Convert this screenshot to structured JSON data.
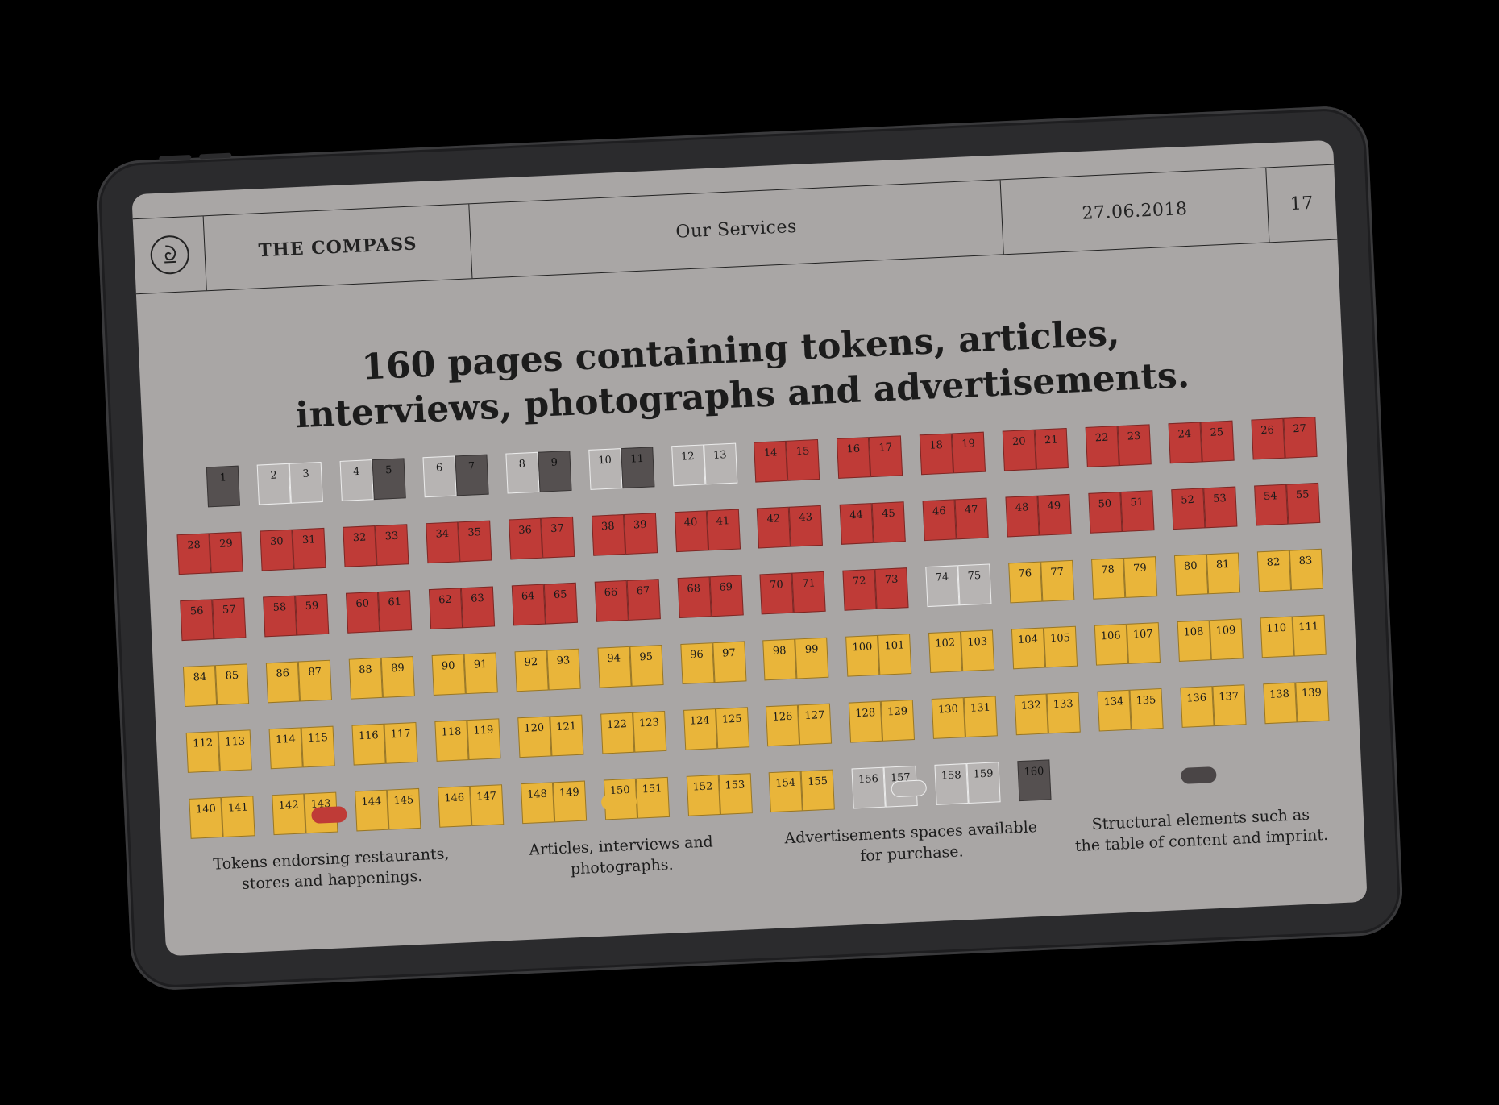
{
  "header": {
    "brand": "THE COMPASS",
    "section": "Our Services",
    "date": "27.06.2018",
    "page_number": "17"
  },
  "headline": {
    "line1": "160 pages containing tokens, articles,",
    "line2": "interviews, photographs and advertisements."
  },
  "colors": {
    "red": "#bf3b37",
    "yellow": "#e9b53a",
    "white": "#b7b4b3",
    "dark": "#555050"
  },
  "spreads": [
    [
      null,
      {
        "n": "1",
        "c": "dark"
      }
    ],
    [
      {
        "n": "2",
        "c": "white"
      },
      {
        "n": "3",
        "c": "white"
      }
    ],
    [
      {
        "n": "4",
        "c": "white"
      },
      {
        "n": "5",
        "c": "dark"
      }
    ],
    [
      {
        "n": "6",
        "c": "white"
      },
      {
        "n": "7",
        "c": "dark"
      }
    ],
    [
      {
        "n": "8",
        "c": "white"
      },
      {
        "n": "9",
        "c": "dark"
      }
    ],
    [
      {
        "n": "10",
        "c": "white"
      },
      {
        "n": "11",
        "c": "dark"
      }
    ],
    [
      {
        "n": "12",
        "c": "white"
      },
      {
        "n": "13",
        "c": "white"
      }
    ],
    [
      {
        "n": "14",
        "c": "red"
      },
      {
        "n": "15",
        "c": "red"
      }
    ],
    [
      {
        "n": "16",
        "c": "red"
      },
      {
        "n": "17",
        "c": "red"
      }
    ],
    [
      {
        "n": "18",
        "c": "red"
      },
      {
        "n": "19",
        "c": "red"
      }
    ],
    [
      {
        "n": "20",
        "c": "red"
      },
      {
        "n": "21",
        "c": "red"
      }
    ],
    [
      {
        "n": "22",
        "c": "red"
      },
      {
        "n": "23",
        "c": "red"
      }
    ],
    [
      {
        "n": "24",
        "c": "red"
      },
      {
        "n": "25",
        "c": "red"
      }
    ],
    [
      {
        "n": "26",
        "c": "red"
      },
      {
        "n": "27",
        "c": "red"
      }
    ],
    [
      {
        "n": "28",
        "c": "red"
      },
      {
        "n": "29",
        "c": "red"
      }
    ],
    [
      {
        "n": "30",
        "c": "red"
      },
      {
        "n": "31",
        "c": "red"
      }
    ],
    [
      {
        "n": "32",
        "c": "red"
      },
      {
        "n": "33",
        "c": "red"
      }
    ],
    [
      {
        "n": "34",
        "c": "red"
      },
      {
        "n": "35",
        "c": "red"
      }
    ],
    [
      {
        "n": "36",
        "c": "red"
      },
      {
        "n": "37",
        "c": "red"
      }
    ],
    [
      {
        "n": "38",
        "c": "red"
      },
      {
        "n": "39",
        "c": "red"
      }
    ],
    [
      {
        "n": "40",
        "c": "red"
      },
      {
        "n": "41",
        "c": "red"
      }
    ],
    [
      {
        "n": "42",
        "c": "red"
      },
      {
        "n": "43",
        "c": "red"
      }
    ],
    [
      {
        "n": "44",
        "c": "red"
      },
      {
        "n": "45",
        "c": "red"
      }
    ],
    [
      {
        "n": "46",
        "c": "red"
      },
      {
        "n": "47",
        "c": "red"
      }
    ],
    [
      {
        "n": "48",
        "c": "red"
      },
      {
        "n": "49",
        "c": "red"
      }
    ],
    [
      {
        "n": "50",
        "c": "red"
      },
      {
        "n": "51",
        "c": "red"
      }
    ],
    [
      {
        "n": "52",
        "c": "red"
      },
      {
        "n": "53",
        "c": "red"
      }
    ],
    [
      {
        "n": "54",
        "c": "red"
      },
      {
        "n": "55",
        "c": "red"
      }
    ],
    [
      {
        "n": "56",
        "c": "red"
      },
      {
        "n": "57",
        "c": "red"
      }
    ],
    [
      {
        "n": "58",
        "c": "red"
      },
      {
        "n": "59",
        "c": "red"
      }
    ],
    [
      {
        "n": "60",
        "c": "red"
      },
      {
        "n": "61",
        "c": "red"
      }
    ],
    [
      {
        "n": "62",
        "c": "red"
      },
      {
        "n": "63",
        "c": "red"
      }
    ],
    [
      {
        "n": "64",
        "c": "red"
      },
      {
        "n": "65",
        "c": "red"
      }
    ],
    [
      {
        "n": "66",
        "c": "red"
      },
      {
        "n": "67",
        "c": "red"
      }
    ],
    [
      {
        "n": "68",
        "c": "red"
      },
      {
        "n": "69",
        "c": "red"
      }
    ],
    [
      {
        "n": "70",
        "c": "red"
      },
      {
        "n": "71",
        "c": "red"
      }
    ],
    [
      {
        "n": "72",
        "c": "red"
      },
      {
        "n": "73",
        "c": "red"
      }
    ],
    [
      {
        "n": "74",
        "c": "white"
      },
      {
        "n": "75",
        "c": "white"
      }
    ],
    [
      {
        "n": "76",
        "c": "yellow"
      },
      {
        "n": "77",
        "c": "yellow"
      }
    ],
    [
      {
        "n": "78",
        "c": "yellow"
      },
      {
        "n": "79",
        "c": "yellow"
      }
    ],
    [
      {
        "n": "80",
        "c": "yellow"
      },
      {
        "n": "81",
        "c": "yellow"
      }
    ],
    [
      {
        "n": "82",
        "c": "yellow"
      },
      {
        "n": "83",
        "c": "yellow"
      }
    ],
    [
      {
        "n": "84",
        "c": "yellow"
      },
      {
        "n": "85",
        "c": "yellow"
      }
    ],
    [
      {
        "n": "86",
        "c": "yellow"
      },
      {
        "n": "87",
        "c": "yellow"
      }
    ],
    [
      {
        "n": "88",
        "c": "yellow"
      },
      {
        "n": "89",
        "c": "yellow"
      }
    ],
    [
      {
        "n": "90",
        "c": "yellow"
      },
      {
        "n": "91",
        "c": "yellow"
      }
    ],
    [
      {
        "n": "92",
        "c": "yellow"
      },
      {
        "n": "93",
        "c": "yellow"
      }
    ],
    [
      {
        "n": "94",
        "c": "yellow"
      },
      {
        "n": "95",
        "c": "yellow"
      }
    ],
    [
      {
        "n": "96",
        "c": "yellow"
      },
      {
        "n": "97",
        "c": "yellow"
      }
    ],
    [
      {
        "n": "98",
        "c": "yellow"
      },
      {
        "n": "99",
        "c": "yellow"
      }
    ],
    [
      {
        "n": "100",
        "c": "yellow"
      },
      {
        "n": "101",
        "c": "yellow"
      }
    ],
    [
      {
        "n": "102",
        "c": "yellow"
      },
      {
        "n": "103",
        "c": "yellow"
      }
    ],
    [
      {
        "n": "104",
        "c": "yellow"
      },
      {
        "n": "105",
        "c": "yellow"
      }
    ],
    [
      {
        "n": "106",
        "c": "yellow"
      },
      {
        "n": "107",
        "c": "yellow"
      }
    ],
    [
      {
        "n": "108",
        "c": "yellow"
      },
      {
        "n": "109",
        "c": "yellow"
      }
    ],
    [
      {
        "n": "110",
        "c": "yellow"
      },
      {
        "n": "111",
        "c": "yellow"
      }
    ],
    [
      {
        "n": "112",
        "c": "yellow"
      },
      {
        "n": "113",
        "c": "yellow"
      }
    ],
    [
      {
        "n": "114",
        "c": "yellow"
      },
      {
        "n": "115",
        "c": "yellow"
      }
    ],
    [
      {
        "n": "116",
        "c": "yellow"
      },
      {
        "n": "117",
        "c": "yellow"
      }
    ],
    [
      {
        "n": "118",
        "c": "yellow"
      },
      {
        "n": "119",
        "c": "yellow"
      }
    ],
    [
      {
        "n": "120",
        "c": "yellow"
      },
      {
        "n": "121",
        "c": "yellow"
      }
    ],
    [
      {
        "n": "122",
        "c": "yellow"
      },
      {
        "n": "123",
        "c": "yellow"
      }
    ],
    [
      {
        "n": "124",
        "c": "yellow"
      },
      {
        "n": "125",
        "c": "yellow"
      }
    ],
    [
      {
        "n": "126",
        "c": "yellow"
      },
      {
        "n": "127",
        "c": "yellow"
      }
    ],
    [
      {
        "n": "128",
        "c": "yellow"
      },
      {
        "n": "129",
        "c": "yellow"
      }
    ],
    [
      {
        "n": "130",
        "c": "yellow"
      },
      {
        "n": "131",
        "c": "yellow"
      }
    ],
    [
      {
        "n": "132",
        "c": "yellow"
      },
      {
        "n": "133",
        "c": "yellow"
      }
    ],
    [
      {
        "n": "134",
        "c": "yellow"
      },
      {
        "n": "135",
        "c": "yellow"
      }
    ],
    [
      {
        "n": "136",
        "c": "yellow"
      },
      {
        "n": "137",
        "c": "yellow"
      }
    ],
    [
      {
        "n": "138",
        "c": "yellow"
      },
      {
        "n": "139",
        "c": "yellow"
      }
    ],
    [
      {
        "n": "140",
        "c": "yellow"
      },
      {
        "n": "141",
        "c": "yellow"
      }
    ],
    [
      {
        "n": "142",
        "c": "yellow"
      },
      {
        "n": "143",
        "c": "yellow"
      }
    ],
    [
      {
        "n": "144",
        "c": "yellow"
      },
      {
        "n": "145",
        "c": "yellow"
      }
    ],
    [
      {
        "n": "146",
        "c": "yellow"
      },
      {
        "n": "147",
        "c": "yellow"
      }
    ],
    [
      {
        "n": "148",
        "c": "yellow"
      },
      {
        "n": "149",
        "c": "yellow"
      }
    ],
    [
      {
        "n": "150",
        "c": "yellow"
      },
      {
        "n": "151",
        "c": "yellow"
      }
    ],
    [
      {
        "n": "152",
        "c": "yellow"
      },
      {
        "n": "153",
        "c": "yellow"
      }
    ],
    [
      {
        "n": "154",
        "c": "yellow"
      },
      {
        "n": "155",
        "c": "yellow"
      }
    ],
    [
      {
        "n": "156",
        "c": "white"
      },
      {
        "n": "157",
        "c": "white"
      }
    ],
    [
      {
        "n": "158",
        "c": "white"
      },
      {
        "n": "159",
        "c": "white"
      }
    ],
    [
      {
        "n": "160",
        "c": "dark"
      },
      null
    ]
  ],
  "legend": [
    {
      "color": "red",
      "text_line1": "Tokens endorsing restaurants,",
      "text_line2": "stores and happenings."
    },
    {
      "color": "yellow",
      "text_line1": "Articles, interviews and",
      "text_line2": "photographs."
    },
    {
      "color": "white",
      "text_line1": "Advertisements spaces available",
      "text_line2": "for purchase."
    },
    {
      "color": "dark",
      "text_line1": "Structural elements such as",
      "text_line2": "the table of content and imprint."
    }
  ]
}
